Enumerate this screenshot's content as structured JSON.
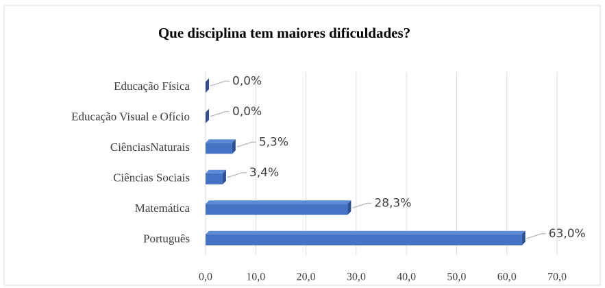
{
  "chart_data": {
    "type": "bar",
    "orientation": "horizontal",
    "title": "Que disciplina   tem maiores dificuldades?",
    "categories": [
      "Educação Física",
      "Educação Visual e Ofício",
      "CiênciasNaturais",
      "Ciências Sociais",
      "Matemática",
      "Português"
    ],
    "values": [
      0.0,
      0.0,
      5.3,
      3.4,
      28.3,
      63.0
    ],
    "value_labels": [
      "0,0%",
      "0,0%",
      "5,3%",
      "3,4%",
      "28,3%",
      "63,0%"
    ],
    "color": "#4472c4",
    "xlim": [
      0,
      70
    ],
    "xticks": [
      {
        "value": 0,
        "label": "0,0"
      },
      {
        "value": 10,
        "label": "10,0"
      },
      {
        "value": 20,
        "label": "20,0"
      },
      {
        "value": 30,
        "label": "30,0"
      },
      {
        "value": 40,
        "label": "40,0"
      },
      {
        "value": 50,
        "label": "50,0"
      },
      {
        "value": 60,
        "label": "60,0"
      },
      {
        "value": 70,
        "label": "70,0"
      }
    ],
    "grid": true
  }
}
